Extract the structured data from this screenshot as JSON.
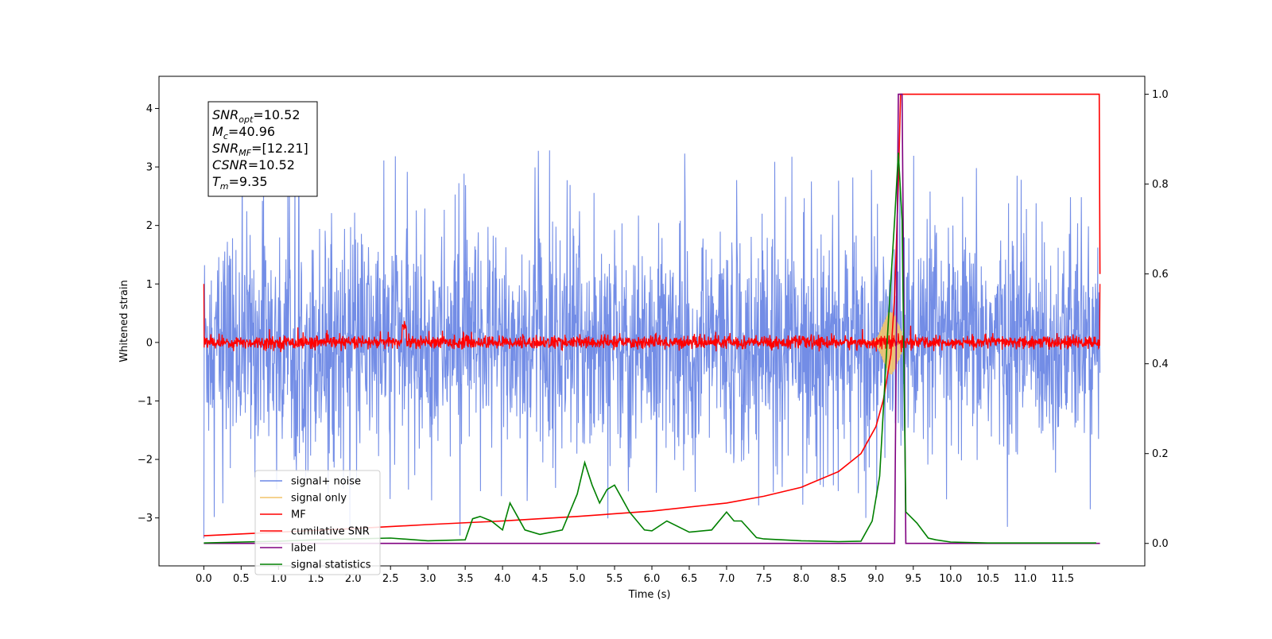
{
  "chart_data": {
    "type": "line",
    "title": "",
    "xlabel": "Time (s)",
    "ylabel": "Whitened strain",
    "xlim": [
      -0.6,
      12.6
    ],
    "ylim": [
      -3.82,
      4.55
    ],
    "y2lim": [
      -0.05,
      1.04
    ],
    "xticks": [
      "0.0",
      "0.5",
      "1.0",
      "1.5",
      "2.0",
      "2.5",
      "3.0",
      "3.5",
      "4.0",
      "4.5",
      "5.0",
      "5.5",
      "6.0",
      "6.5",
      "7.0",
      "7.5",
      "8.0",
      "8.5",
      "9.0",
      "9.5",
      "10.0",
      "10.5",
      "11.0",
      "11.5"
    ],
    "yticks": [
      "−3",
      "−2",
      "−1",
      "0",
      "1",
      "2",
      "3",
      "4"
    ],
    "y2ticks": [
      "0.0",
      "0.2",
      "0.4",
      "0.6",
      "0.8",
      "1.0"
    ],
    "grid": false,
    "legend_position": "lower-left",
    "series": [
      {
        "name": "signal+ noise",
        "axis": "left",
        "color": "#6b87e5",
        "description": "dense noise roughly within -2.5..2.5 with sparse spikes up to ~3.4 and down to ~-3.3, over 0..12 s"
      },
      {
        "name": "signal only",
        "axis": "left",
        "color": "#f2c46a",
        "description": "chirp near t~9.0-9.35 s, amplitude ~0.5"
      },
      {
        "name": "MF",
        "axis": "left",
        "color": "#ff0000",
        "description": "matched filter output around 0 with noise amplitude ~0.15, bump ~0.3 at t~2.7"
      },
      {
        "name": "cumilative SNR",
        "axis": "right",
        "color": "#ff0000",
        "x": [
          0,
          1,
          2,
          3,
          4,
          5,
          6,
          7,
          7.5,
          8,
          8.5,
          8.8,
          9.0,
          9.1,
          9.2,
          9.25,
          9.3,
          9.33,
          9.35,
          11.99,
          12.0
        ],
        "y": [
          0.017,
          0.025,
          0.033,
          0.042,
          0.05,
          0.06,
          0.072,
          0.09,
          0.105,
          0.125,
          0.16,
          0.2,
          0.26,
          0.32,
          0.42,
          0.55,
          0.8,
          1.0,
          1.0,
          1.0,
          0.6
        ]
      },
      {
        "name": "label",
        "axis": "right",
        "color": "#800080",
        "x": [
          0,
          9.25,
          9.3,
          9.35,
          9.4,
          12.0
        ],
        "y": [
          0,
          0,
          1.0,
          1.0,
          0,
          0
        ]
      },
      {
        "name": "signal statistics",
        "axis": "right",
        "color": "#008000",
        "x": [
          0,
          0.5,
          1.0,
          1.5,
          2.0,
          2.5,
          3.0,
          3.5,
          3.6,
          3.7,
          3.85,
          4.0,
          4.1,
          4.2,
          4.3,
          4.5,
          4.8,
          5.0,
          5.1,
          5.2,
          5.3,
          5.4,
          5.5,
          5.6,
          5.7,
          5.9,
          6.0,
          6.2,
          6.5,
          6.8,
          7.0,
          7.1,
          7.2,
          7.4,
          7.5,
          8.0,
          8.5,
          8.8,
          8.95,
          9.05,
          9.15,
          9.25,
          9.3,
          9.35,
          9.4,
          9.55,
          9.7,
          9.8,
          10.0,
          10.5,
          11.0,
          11.5,
          11.95
        ],
        "y": [
          0.001,
          0.003,
          0.005,
          0.008,
          0.01,
          0.012,
          0.006,
          0.008,
          0.055,
          0.06,
          0.05,
          0.03,
          0.09,
          0.06,
          0.03,
          0.02,
          0.03,
          0.11,
          0.18,
          0.13,
          0.09,
          0.12,
          0.13,
          0.1,
          0.07,
          0.03,
          0.028,
          0.05,
          0.025,
          0.03,
          0.07,
          0.05,
          0.05,
          0.013,
          0.01,
          0.006,
          0.004,
          0.005,
          0.05,
          0.15,
          0.45,
          0.72,
          0.87,
          0.72,
          0.07,
          0.045,
          0.012,
          0.008,
          0.003,
          0.001,
          0.001,
          0.001,
          0.001
        ]
      }
    ],
    "annotation": {
      "lines": [
        {
          "base": "SNR",
          "sub": "opt",
          "rest": "=10.52"
        },
        {
          "base": "M",
          "sub": "c",
          "rest": "=40.96"
        },
        {
          "base": "SNR",
          "sub": "MF",
          "rest": "=[12.21]"
        },
        {
          "base": "CSNR",
          "sub": "",
          "rest": "=10.52"
        },
        {
          "base": "T",
          "sub": "m",
          "rest": "=9.35"
        }
      ]
    }
  }
}
